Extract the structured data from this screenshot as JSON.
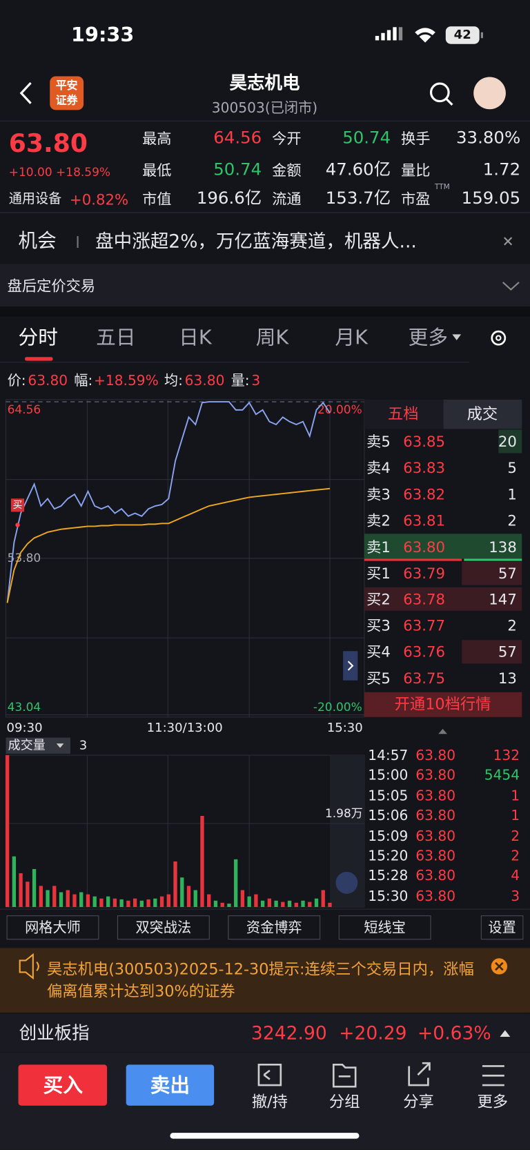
{
  "status_bar": {
    "time": "19:33",
    "battery": "42"
  },
  "header": {
    "logo_top": "平安",
    "logo_bottom": "证券",
    "title": "昊志机电",
    "subtitle": "300503(已闭市)"
  },
  "quote": {
    "price": "63.80",
    "change": "+10.00 +18.59%",
    "sector": "通用设备",
    "sector_change": "+0.82%",
    "ttm": "TTM",
    "stats": [
      {
        "label": "最高",
        "value": "64.56",
        "color": "#ff3b45"
      },
      {
        "label": "今开",
        "value": "50.74",
        "color": "#2fc46a"
      },
      {
        "label": "换手",
        "value": "33.80%",
        "color": "#e8e9ee"
      },
      {
        "label": "最低",
        "value": "50.74",
        "color": "#2fc46a"
      },
      {
        "label": "金额",
        "value": "47.60亿",
        "color": "#e8e9ee"
      },
      {
        "label": "量比",
        "value": "1.72",
        "color": "#e8e9ee"
      },
      {
        "label": "市值",
        "value": "196.6亿",
        "color": "#e8e9ee"
      },
      {
        "label": "流通",
        "value": "153.7亿",
        "color": "#e8e9ee"
      },
      {
        "label": "市盈",
        "value": "159.05",
        "color": "#e8e9ee"
      }
    ]
  },
  "news": {
    "tag": "机会",
    "text": "盘中涨超2%，万亿蓝海赛道，机器人..."
  },
  "after_hours": "盘后定价交易",
  "tabs": [
    "分时",
    "五日",
    "日K",
    "周K",
    "月K",
    "更多"
  ],
  "info_line": [
    {
      "label": "价:",
      "value": "63.80"
    },
    {
      "label": "幅:",
      "value": "+18.59%"
    },
    {
      "label": "均:",
      "value": "63.80"
    },
    {
      "label": "量:",
      "value": "3"
    }
  ],
  "chart_data": [
    {
      "type": "line",
      "buy_marker": "买",
      "ylim": [
        43.04,
        64.56
      ],
      "yticks": [
        64.56,
        {
          "value": 53.8,
          "label": "53.80"
        },
        43.04
      ],
      "y2lim": [
        -20,
        20
      ],
      "y2ticks": [
        {
          "value": 20,
          "label": "20.00%"
        },
        {
          "value": -20,
          "label": "-20.00%"
        }
      ],
      "x_labels": [
        "09:30",
        "11:30/13:00",
        "15:30"
      ],
      "series": [
        {
          "color": "#8aa4f0",
          "values": [
            50.74,
            54.9,
            56.9,
            57.9,
            58.9,
            57.4,
            57.9,
            57.2,
            57.4,
            57.9,
            58.2,
            57.4,
            58.4,
            57.4,
            57.2,
            57.4,
            56.9,
            57.2,
            56.7,
            56.9,
            56.7,
            57.2,
            57.4,
            57.5,
            57.9,
            60.5,
            62.0,
            63.5,
            63.0,
            64.5,
            64.56,
            64.56,
            64.56,
            64.56,
            64.0,
            64.0,
            64.5,
            63.7,
            64.0,
            63.2,
            63.0,
            63.5,
            63.2,
            63.0,
            63.2,
            62.2,
            64.0,
            64.5,
            63.8
          ]
        },
        {
          "color": "#f0a81c",
          "values": [
            50.74,
            53.0,
            54.2,
            54.8,
            55.2,
            55.4,
            55.6,
            55.7,
            55.8,
            55.85,
            55.9,
            55.95,
            56.0,
            56.0,
            56.05,
            56.05,
            56.1,
            56.1,
            56.1,
            56.1,
            56.1,
            56.15,
            56.15,
            56.2,
            56.2,
            56.4,
            56.6,
            56.8,
            57.0,
            57.2,
            57.4,
            57.5,
            57.6,
            57.7,
            57.8,
            57.9,
            58.0,
            58.05,
            58.1,
            58.15,
            58.2,
            58.25,
            58.3,
            58.35,
            58.4,
            58.45,
            58.5,
            58.55,
            58.6
          ]
        }
      ]
    },
    {
      "type": "bar",
      "label": "成交量",
      "current": "3",
      "ylim": [
        0,
        36000
      ],
      "yticks": [
        {
          "value": 19800,
          "label": "1.98万"
        }
      ],
      "values": [
        36000,
        12000,
        8000,
        6000,
        9000,
        5000,
        4000,
        5000,
        3500,
        4000,
        3000,
        3500,
        3000,
        2500,
        2000,
        2500,
        2000,
        1800,
        1500,
        2000,
        1500,
        1800,
        2000,
        2500,
        3000,
        10800,
        7000,
        5000,
        4000,
        21600,
        3000,
        1500,
        1000,
        800,
        11300,
        4000,
        2500,
        3000,
        1500,
        2000,
        1500,
        1200,
        1500,
        1000,
        1500,
        1200,
        2000,
        4000,
        1000
      ],
      "colors": [
        "#e8353d",
        "#2fb35b",
        "#e8353d",
        "#e8353d",
        "#2fb35b",
        "#e8353d",
        "#2fb35b",
        "#e8353d",
        "#2fb35b",
        "#e8353d",
        "#e8353d",
        "#2fb35b",
        "#e8353d",
        "#2fb35b",
        "#e8353d",
        "#2fb35b",
        "#e8353d",
        "#2fb35b",
        "#e8353d",
        "#e8353d",
        "#2fb35b",
        "#e8353d",
        "#2fb35b",
        "#e8353d",
        "#e8353d",
        "#e8353d",
        "#2fb35b",
        "#e8353d",
        "#2fb35b",
        "#e8353d",
        "#e8353d",
        "#2fb35b",
        "#e8353d",
        "#2fb35b",
        "#2fb35b",
        "#e8353d",
        "#2fb35b",
        "#e8353d",
        "#2fb35b",
        "#e8353d",
        "#2fb35b",
        "#e8353d",
        "#2fb35b",
        "#e8353d",
        "#2fb35b",
        "#e8353d",
        "#2fb35b",
        "#e8353d",
        "#e8353d"
      ]
    }
  ],
  "order_book": {
    "tabs": [
      "五档",
      "成交"
    ],
    "rows": [
      [
        "卖5",
        "63.85",
        "20"
      ],
      [
        "卖4",
        "63.83",
        "5"
      ],
      [
        "卖3",
        "63.82",
        "1"
      ],
      [
        "卖2",
        "63.81",
        "2"
      ],
      [
        "卖1",
        "63.80",
        "138"
      ],
      [
        "买1",
        "63.79",
        "57"
      ],
      [
        "买2",
        "63.78",
        "147"
      ],
      [
        "买3",
        "63.77",
        "2"
      ],
      [
        "买4",
        "63.76",
        "57"
      ],
      [
        "买5",
        "63.75",
        "13"
      ]
    ],
    "more": "开通10档行情"
  },
  "trades": [
    [
      "14:57",
      "63.80",
      "132"
    ],
    [
      "15:00",
      "63.80",
      "5454"
    ],
    [
      "15:05",
      "63.80",
      "1"
    ],
    [
      "15:06",
      "63.80",
      "1"
    ],
    [
      "15:09",
      "63.80",
      "2"
    ],
    [
      "15:20",
      "63.80",
      "2"
    ],
    [
      "15:28",
      "63.80",
      "4"
    ],
    [
      "15:30",
      "63.80",
      "3"
    ]
  ],
  "tools": [
    "网格大师",
    "双突战法",
    "资金博弈",
    "短线宝",
    "设置"
  ],
  "notice": "昊志机电(300503)2025-12-30提示:连续三个交易日内，涨幅偏离值累计达到30%的证券",
  "index": {
    "name": "创业板指",
    "value": "3242.90",
    "change": "+20.29",
    "pct": "+0.63%"
  },
  "bottom": {
    "buy": "买入",
    "sell": "卖出",
    "nav": [
      "撤/持",
      "分组",
      "分享",
      "更多"
    ]
  }
}
